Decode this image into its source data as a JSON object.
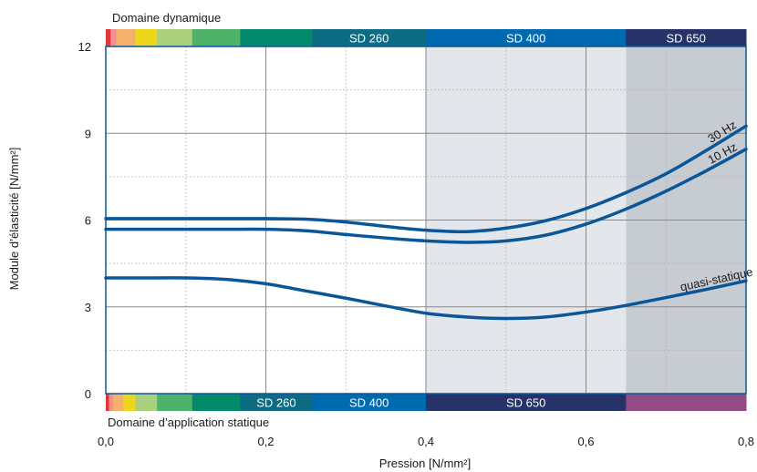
{
  "chart_data": {
    "type": "line",
    "title": "",
    "xlabel": "Pression [N/mm²]",
    "ylabel": "Module d’élasticité [N/mm²]",
    "xlim": [
      0,
      0.8
    ],
    "ylim": [
      0,
      12
    ],
    "x_ticks": [
      0,
      0.2,
      0.4,
      0.6,
      0.8
    ],
    "x_tick_labels": [
      "0,0",
      "0,2",
      "0,4",
      "0,6",
      "0,8"
    ],
    "y_ticks": [
      0,
      3,
      6,
      9,
      12
    ],
    "y_tick_labels": [
      "0",
      "3",
      "6",
      "9",
      "12"
    ],
    "grid": true,
    "series": [
      {
        "name": "30 Hz",
        "color": "#0a5699",
        "x": [
          0,
          0.05,
          0.1,
          0.15,
          0.2,
          0.25,
          0.3,
          0.35,
          0.4,
          0.45,
          0.5,
          0.55,
          0.6,
          0.65,
          0.7,
          0.75,
          0.8
        ],
        "y": [
          6.05,
          6.05,
          6.05,
          6.05,
          6.05,
          6.03,
          5.93,
          5.78,
          5.65,
          5.6,
          5.72,
          5.98,
          6.4,
          6.95,
          7.6,
          8.4,
          9.25
        ]
      },
      {
        "name": "10 Hz",
        "color": "#0a5699",
        "x": [
          0,
          0.05,
          0.1,
          0.15,
          0.2,
          0.25,
          0.3,
          0.35,
          0.4,
          0.45,
          0.5,
          0.55,
          0.6,
          0.65,
          0.7,
          0.75,
          0.8
        ],
        "y": [
          5.68,
          5.68,
          5.68,
          5.68,
          5.68,
          5.63,
          5.5,
          5.38,
          5.28,
          5.23,
          5.28,
          5.48,
          5.86,
          6.38,
          7.0,
          7.7,
          8.45
        ]
      },
      {
        "name": "quasi-statique",
        "color": "#0a5699",
        "x": [
          0,
          0.05,
          0.1,
          0.15,
          0.2,
          0.25,
          0.3,
          0.35,
          0.4,
          0.45,
          0.5,
          0.55,
          0.6,
          0.65,
          0.7,
          0.75,
          0.8
        ],
        "y": [
          4.0,
          4.0,
          4.0,
          3.95,
          3.8,
          3.55,
          3.3,
          3.03,
          2.78,
          2.65,
          2.6,
          2.65,
          2.82,
          3.05,
          3.32,
          3.6,
          3.9
        ]
      }
    ],
    "shaded_regions": [
      {
        "x0": 0.4,
        "x1": 0.65,
        "color": "#e3e6eb"
      },
      {
        "x0": 0.65,
        "x1": 0.8,
        "color": "#c7ccd2"
      }
    ],
    "top_band": {
      "label": "Domaine dynamique",
      "segments": [
        {
          "x0": 0.0,
          "x1": 0.006,
          "color": "#e0373a",
          "label": ""
        },
        {
          "x0": 0.006,
          "x1": 0.013,
          "color": "#f38f8c",
          "label": ""
        },
        {
          "x0": 0.013,
          "x1": 0.037,
          "color": "#f6b06e",
          "label": ""
        },
        {
          "x0": 0.037,
          "x1": 0.064,
          "color": "#ecd71a",
          "label": ""
        },
        {
          "x0": 0.064,
          "x1": 0.108,
          "color": "#aacf7d",
          "label": ""
        },
        {
          "x0": 0.108,
          "x1": 0.168,
          "color": "#4eb26b",
          "label": ""
        },
        {
          "x0": 0.168,
          "x1": 0.258,
          "color": "#028a6a",
          "label": ""
        },
        {
          "x0": 0.258,
          "x1": 0.4,
          "color": "#0d6b82",
          "label": "SD 260"
        },
        {
          "x0": 0.4,
          "x1": 0.65,
          "color": "#006ab0",
          "label": "SD 400"
        },
        {
          "x0": 0.65,
          "x1": 0.8,
          "color": "#263268",
          "label": "SD 650"
        }
      ]
    },
    "bottom_band": {
      "label": "Domaine d’application statique",
      "segments": [
        {
          "x0": 0.0,
          "x1": 0.004,
          "color": "#e0373a",
          "label": ""
        },
        {
          "x0": 0.004,
          "x1": 0.009,
          "color": "#f38f8c",
          "label": ""
        },
        {
          "x0": 0.009,
          "x1": 0.022,
          "color": "#f6b06e",
          "label": ""
        },
        {
          "x0": 0.022,
          "x1": 0.037,
          "color": "#ecd71a",
          "label": ""
        },
        {
          "x0": 0.037,
          "x1": 0.064,
          "color": "#aacf7d",
          "label": ""
        },
        {
          "x0": 0.064,
          "x1": 0.108,
          "color": "#4eb26b",
          "label": ""
        },
        {
          "x0": 0.108,
          "x1": 0.168,
          "color": "#028a6a",
          "label": ""
        },
        {
          "x0": 0.168,
          "x1": 0.258,
          "color": "#0d6b82",
          "label": "SD 260"
        },
        {
          "x0": 0.258,
          "x1": 0.4,
          "color": "#006ab0",
          "label": "SD 400"
        },
        {
          "x0": 0.4,
          "x1": 0.65,
          "color": "#263268",
          "label": "SD 650"
        },
        {
          "x0": 0.65,
          "x1": 0.8,
          "color": "#924b86",
          "label": ""
        }
      ]
    }
  }
}
